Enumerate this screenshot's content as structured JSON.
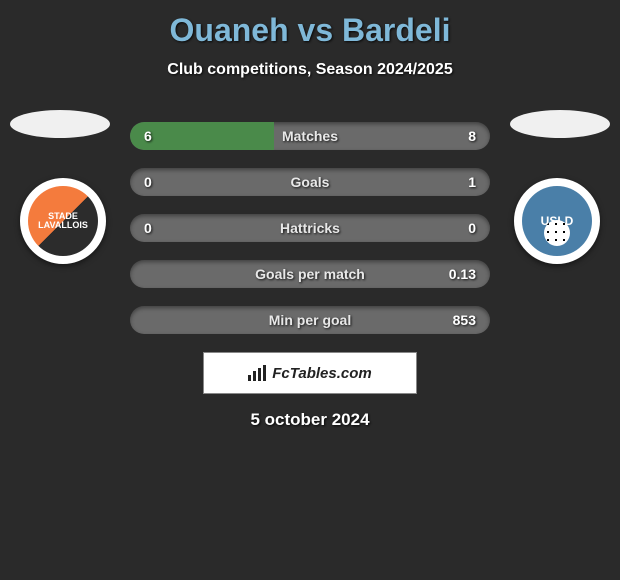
{
  "title": "Ouaneh vs Bardeli",
  "title_color": "#7fb8d8",
  "subtitle": "Club competitions, Season 2024/2025",
  "background_color": "#2a2a2a",
  "date": "5 october 2024",
  "brand": "FcTables.com",
  "team_left": {
    "badge_text": "STADE LAVALLOIS",
    "badge_bg_primary": "#f47b3d",
    "badge_bg_secondary": "#2c2c2c"
  },
  "team_right": {
    "badge_text": "USLD",
    "badge_bg": "#4a7fa8"
  },
  "bar_style": {
    "height": 28,
    "border_radius": 14,
    "track_color": "#6a6a6a",
    "fill_color": "#4a8a4a",
    "label_fontsize": 14,
    "value_fontsize": 14
  },
  "stats": [
    {
      "label": "Matches",
      "left_value": "6",
      "right_value": "8",
      "left_pct": 40,
      "right_pct": 0
    },
    {
      "label": "Goals",
      "left_value": "0",
      "right_value": "1",
      "left_pct": 0,
      "right_pct": 0
    },
    {
      "label": "Hattricks",
      "left_value": "0",
      "right_value": "0",
      "left_pct": 0,
      "right_pct": 0
    },
    {
      "label": "Goals per match",
      "left_value": "",
      "right_value": "0.13",
      "left_pct": 0,
      "right_pct": 0
    },
    {
      "label": "Min per goal",
      "left_value": "",
      "right_value": "853",
      "left_pct": 0,
      "right_pct": 0
    }
  ]
}
